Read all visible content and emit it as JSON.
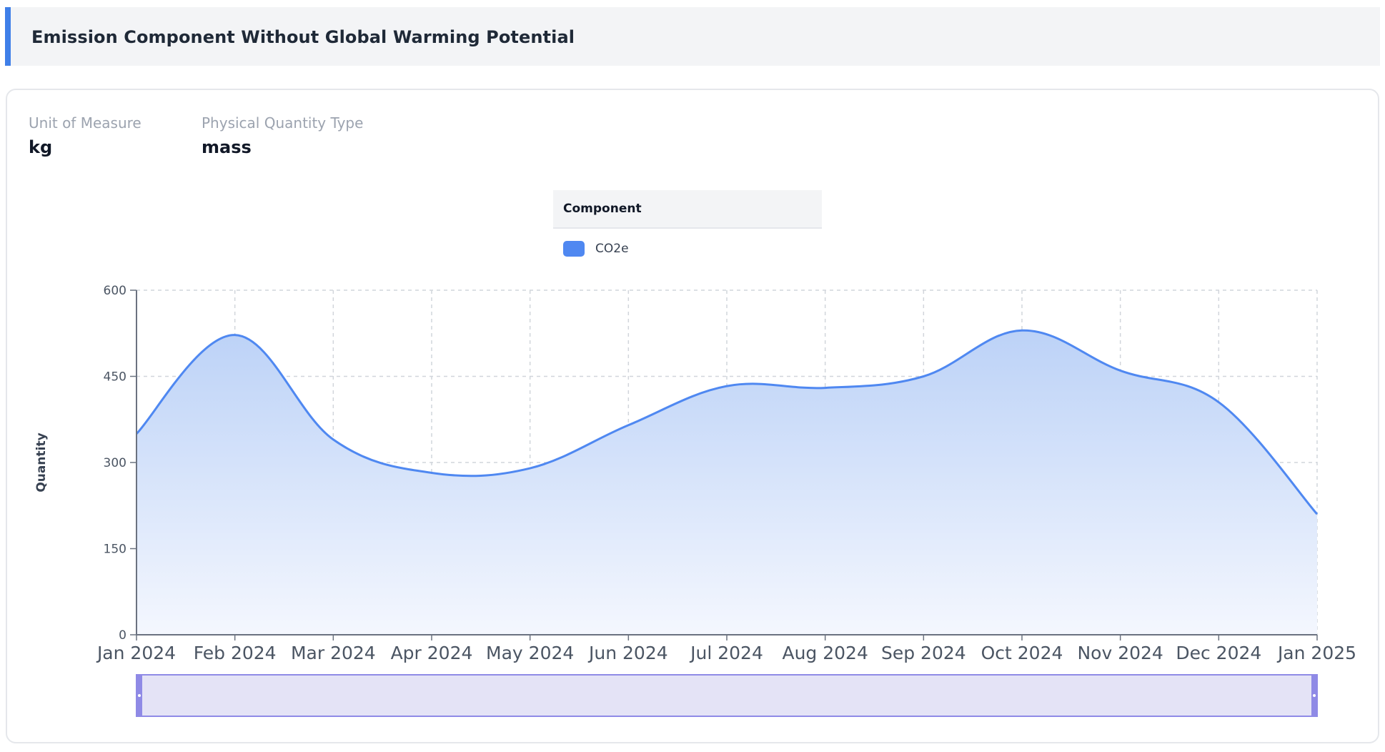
{
  "header": {
    "title": "Emission Component Without Global Warming Potential"
  },
  "meta": {
    "unit_label": "Unit of Measure",
    "unit_value": "kg",
    "quantity_type_label": "Physical Quantity Type",
    "quantity_type_value": "mass"
  },
  "legend": {
    "title": "Component",
    "items": [
      {
        "label": "CO2e",
        "color": "#4f88f1"
      }
    ]
  },
  "colors": {
    "accent": "#3f7fe8",
    "series_line": "#4f88f1",
    "area_fill_top": "#bcd2f7",
    "area_fill_bottom": "#f4f7fe",
    "slider_fill": "#e4e3f6",
    "slider_border": "#8f8ae6"
  },
  "chart_data": {
    "type": "area",
    "title": "",
    "xlabel": "",
    "ylabel": "Quantity",
    "ylim": [
      0,
      600
    ],
    "yticks": [
      0,
      150,
      300,
      450,
      600
    ],
    "grid": true,
    "legend_position": "top-center",
    "x": [
      "Jan 2024",
      "Feb 2024",
      "Mar 2024",
      "Apr 2024",
      "May 2024",
      "Jun 2024",
      "Jul 2024",
      "Aug 2024",
      "Sep 2024",
      "Oct 2024",
      "Nov 2024",
      "Dec 2024",
      "Jan 2025"
    ],
    "series": [
      {
        "name": "CO2e",
        "values": [
          350,
          522,
          340,
          282,
          290,
          365,
          433,
          430,
          450,
          530,
          460,
          405,
          210
        ]
      }
    ],
    "range_slider": {
      "start": "Jan 2024",
      "end": "Jan 2025"
    }
  }
}
